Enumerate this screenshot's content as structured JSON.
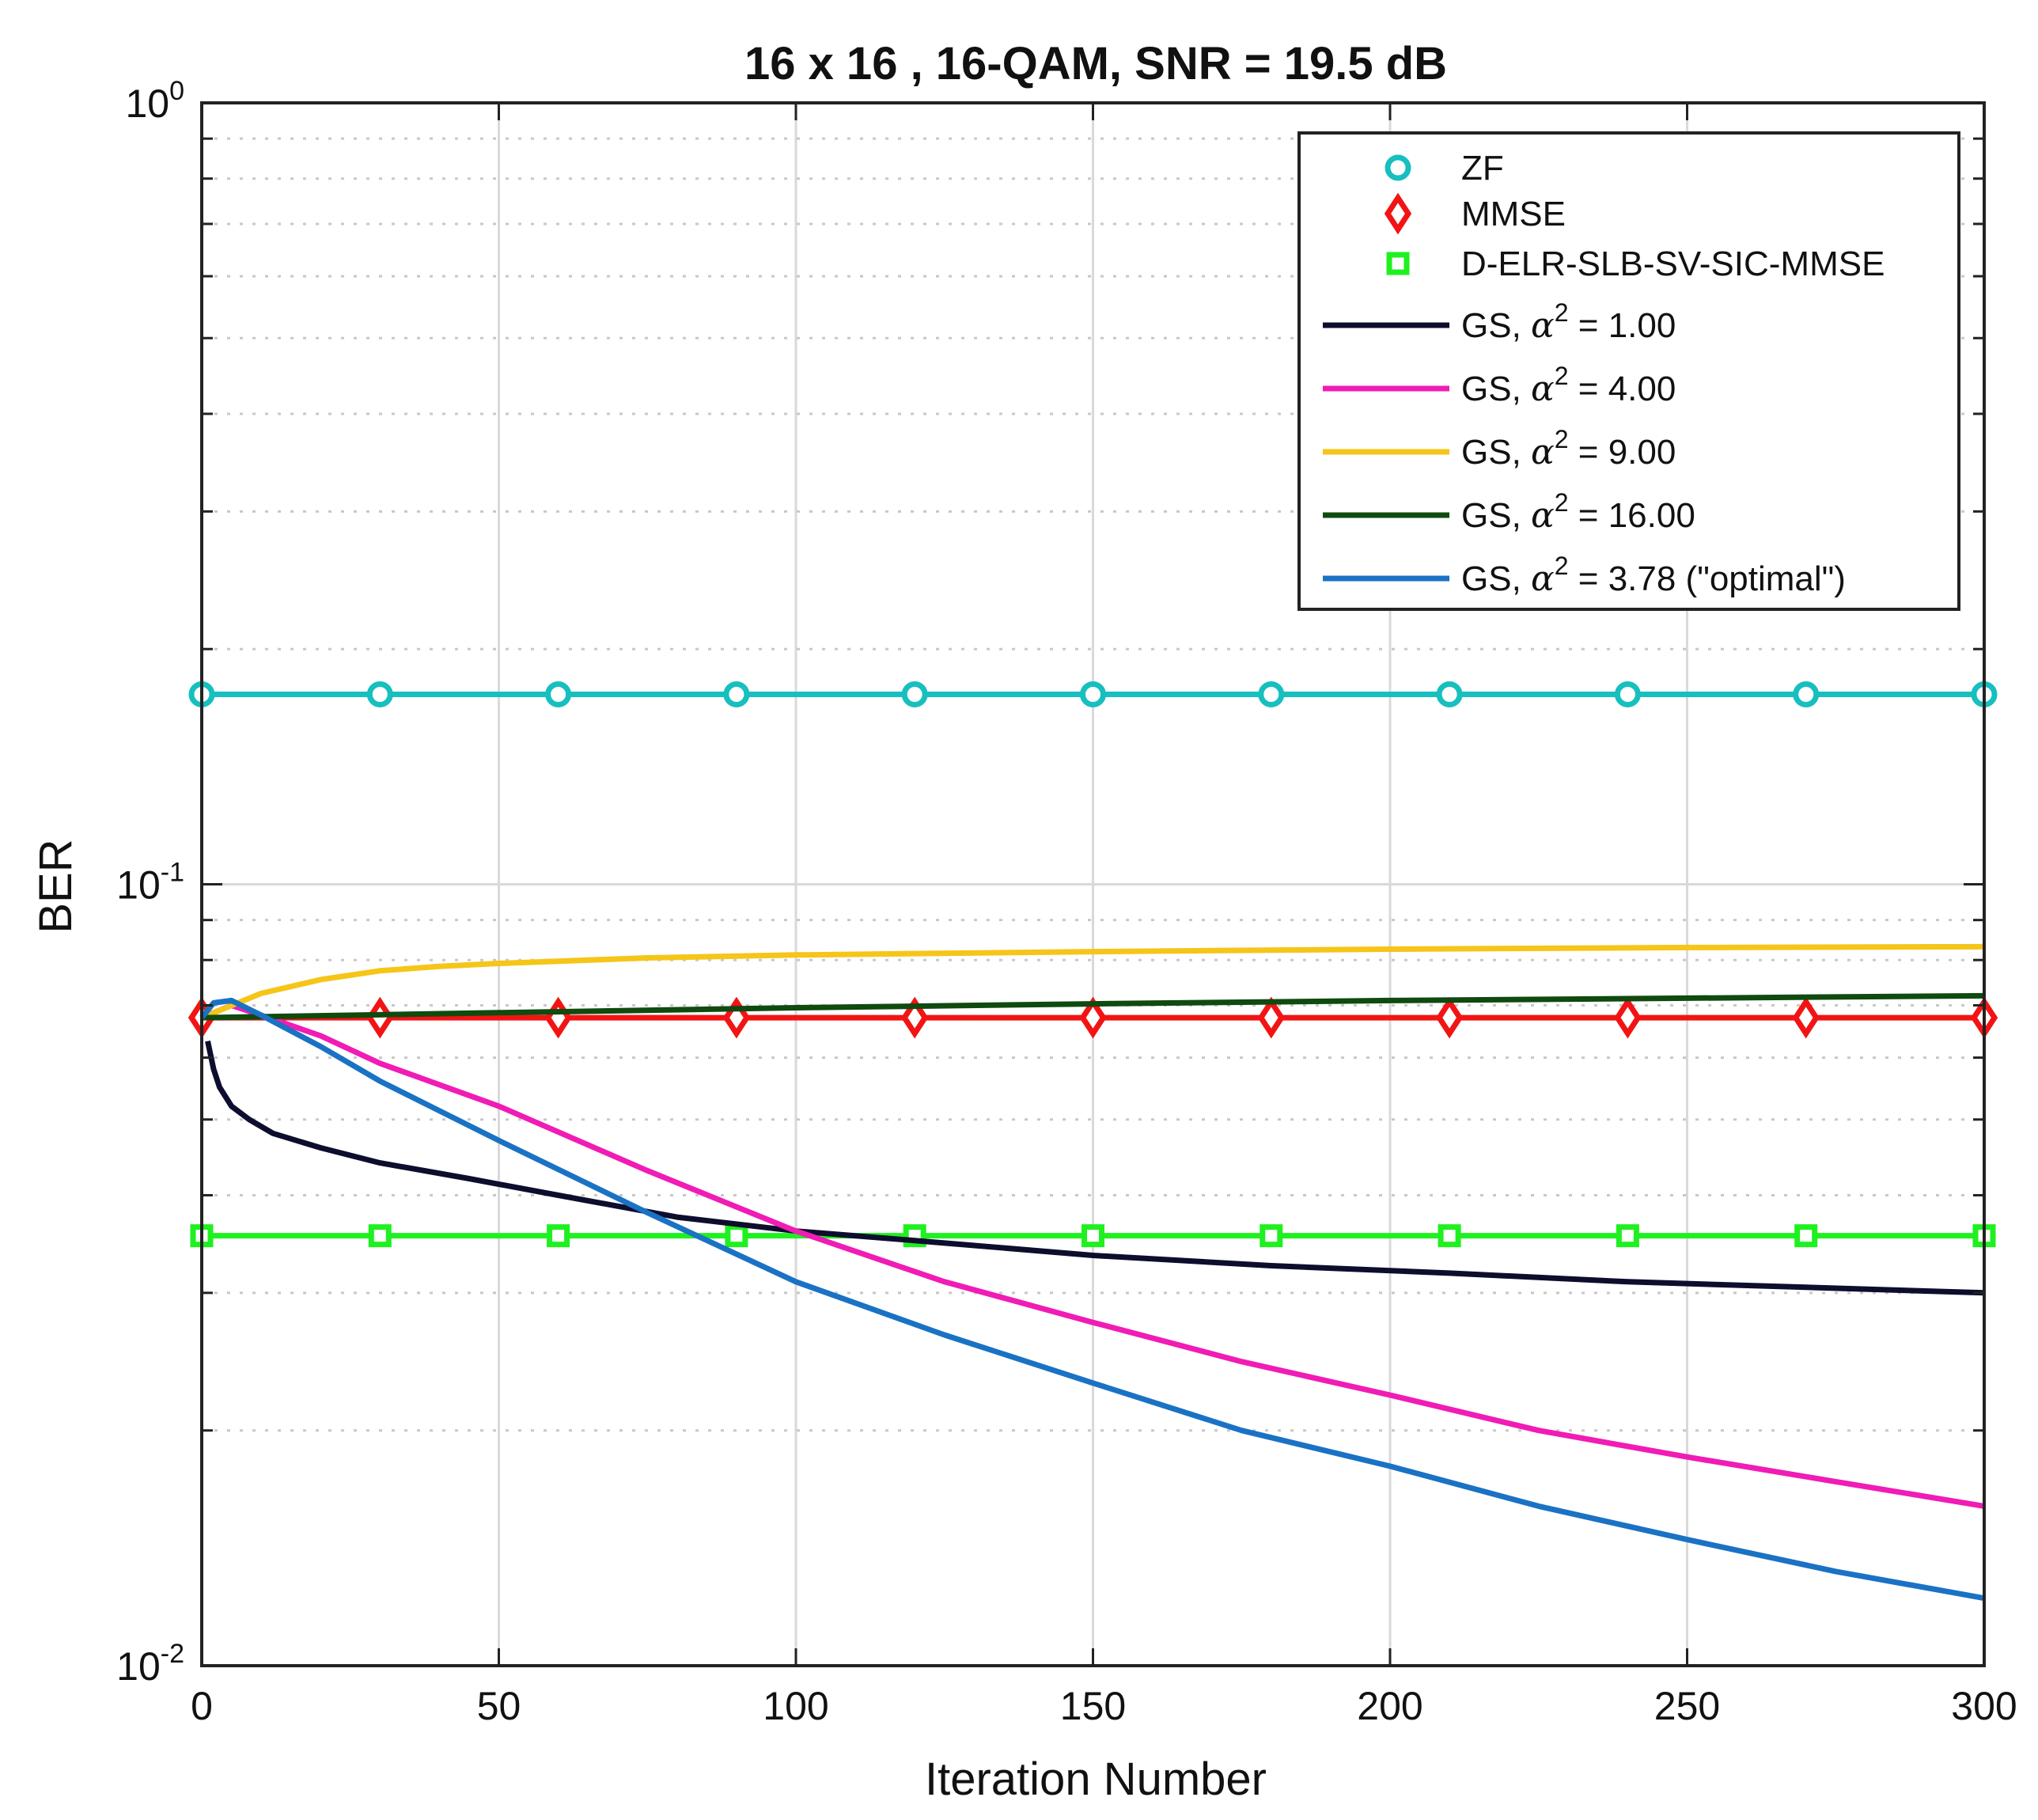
{
  "chart_data": {
    "type": "line",
    "title": "16 x 16 , 16-QAM, SNR = 19.5 dB",
    "xlabel": "Iteration Number",
    "ylabel": "BER",
    "yscale": "log",
    "xlim": [
      0,
      300
    ],
    "ylim": [
      0.01,
      1
    ],
    "grid": true,
    "legend_position": "top-right",
    "x_ticks": [
      0,
      50,
      100,
      150,
      200,
      250,
      300
    ],
    "x_tick_labels": [
      "0",
      "50",
      "100",
      "150",
      "200",
      "250",
      "300"
    ],
    "y_ticks": [
      {
        "value": 1,
        "base": "10",
        "exp": "0"
      },
      {
        "value": 0.1,
        "base": "10",
        "exp": "-1"
      },
      {
        "value": 0.01,
        "base": "10",
        "exp": "-2"
      }
    ],
    "series": [
      {
        "name": "ZF",
        "color": "#17bfbf",
        "line": "solid",
        "marker": "circle",
        "x": [
          0,
          30,
          60,
          90,
          120,
          150,
          180,
          210,
          240,
          270,
          300
        ],
        "values": [
          0.175,
          0.175,
          0.175,
          0.175,
          0.175,
          0.175,
          0.175,
          0.175,
          0.175,
          0.175,
          0.175
        ]
      },
      {
        "name": "MMSE",
        "color": "#f21414",
        "line": "solid",
        "marker": "diamond",
        "x": [
          0,
          30,
          60,
          90,
          120,
          150,
          180,
          210,
          240,
          270,
          300
        ],
        "values": [
          0.0675,
          0.0675,
          0.0675,
          0.0675,
          0.0675,
          0.0675,
          0.0675,
          0.0675,
          0.0675,
          0.0675,
          0.0675
        ]
      },
      {
        "name": "D-ELR-SLB-SV-SIC-MMSE",
        "color": "#1ff01f",
        "line": "solid",
        "marker": "square",
        "x": [
          0,
          30,
          60,
          90,
          120,
          150,
          180,
          210,
          240,
          270,
          300
        ],
        "values": [
          0.0355,
          0.0355,
          0.0355,
          0.0355,
          0.0355,
          0.0355,
          0.0355,
          0.0355,
          0.0355,
          0.0355,
          0.0355
        ]
      },
      {
        "name": "GS, α² = 1.00",
        "legend_prefix": "GS, ",
        "legend_alpha": "α",
        "legend_exp": "2",
        "legend_suffix": " = 1.00",
        "color": "#0d0d2e",
        "line": "solid",
        "marker": "none",
        "x": [
          1,
          2,
          3,
          5,
          8,
          12,
          20,
          30,
          45,
          60,
          80,
          100,
          120,
          150,
          180,
          210,
          240,
          270,
          300
        ],
        "values": [
          0.063,
          0.058,
          0.055,
          0.052,
          0.05,
          0.048,
          0.046,
          0.044,
          0.042,
          0.04,
          0.0375,
          0.036,
          0.035,
          0.0335,
          0.0325,
          0.0318,
          0.031,
          0.0305,
          0.03
        ]
      },
      {
        "name": "GS, α² = 4.00",
        "legend_prefix": "GS, ",
        "legend_alpha": "α",
        "legend_exp": "2",
        "legend_suffix": " = 4.00",
        "color": "#f01cb5",
        "line": "solid",
        "marker": "none",
        "x": [
          0,
          5,
          10,
          20,
          30,
          50,
          75,
          100,
          125,
          150,
          175,
          200,
          225,
          250,
          275,
          300
        ],
        "values": [
          0.0675,
          0.07,
          0.068,
          0.064,
          0.059,
          0.052,
          0.043,
          0.036,
          0.031,
          0.0275,
          0.0245,
          0.0222,
          0.02,
          0.0185,
          0.0172,
          0.016
        ]
      },
      {
        "name": "GS, α² = 9.00",
        "legend_prefix": "GS, ",
        "legend_alpha": "α",
        "legend_exp": "2",
        "legend_suffix": " = 9.00",
        "color": "#f5c518",
        "line": "solid",
        "marker": "none",
        "x": [
          0,
          10,
          20,
          30,
          40,
          50,
          75,
          100,
          150,
          200,
          250,
          300
        ],
        "values": [
          0.0675,
          0.0725,
          0.0755,
          0.0775,
          0.0785,
          0.0792,
          0.0805,
          0.0812,
          0.082,
          0.0826,
          0.083,
          0.0832
        ]
      },
      {
        "name": "GS, α² = 16.00",
        "legend_prefix": "GS, ",
        "legend_alpha": "α",
        "legend_exp": "2",
        "legend_suffix": " = 16.00",
        "color": "#0f4a0f",
        "line": "solid",
        "marker": "none",
        "x": [
          0,
          50,
          100,
          150,
          200,
          250,
          300
        ],
        "values": [
          0.0675,
          0.0685,
          0.0695,
          0.0703,
          0.071,
          0.0715,
          0.072
        ]
      },
      {
        "name": "GS, α² = 3.78 (\"optimal\")",
        "legend_prefix": "GS, ",
        "legend_alpha": "α",
        "legend_exp": "2",
        "legend_suffix": " = 3.78 (\"optimal\")",
        "color": "#1a72c4",
        "line": "solid",
        "marker": "none",
        "x": [
          0,
          2,
          5,
          10,
          20,
          30,
          50,
          75,
          100,
          125,
          150,
          175,
          200,
          225,
          250,
          275,
          300
        ],
        "values": [
          0.0675,
          0.0705,
          0.071,
          0.068,
          0.062,
          0.056,
          0.047,
          0.038,
          0.031,
          0.0265,
          0.023,
          0.02,
          0.018,
          0.016,
          0.0145,
          0.0132,
          0.0122
        ]
      }
    ]
  }
}
